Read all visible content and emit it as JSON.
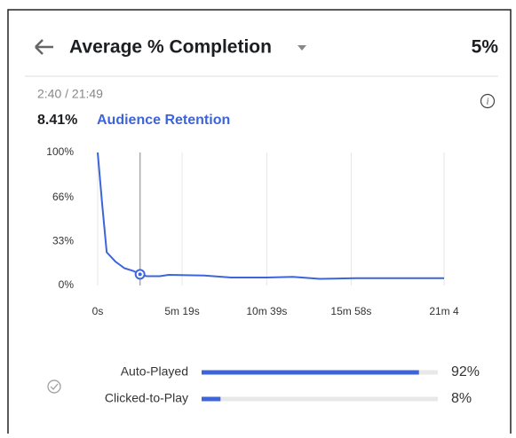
{
  "header": {
    "title": "Average % Completion",
    "value": "5%"
  },
  "summary": {
    "time": "2:40 / 21:49",
    "retention_value": "8.41%",
    "retention_label": "Audience Retention"
  },
  "chart_data": {
    "type": "line",
    "x": [
      0,
      17,
      34,
      67,
      101,
      134,
      160,
      185,
      235,
      268,
      403,
      503,
      638,
      738,
      839,
      973,
      1141,
      1309
    ],
    "series": [
      {
        "name": "Audience Retention",
        "color": "#3d64d8",
        "values": [
          100,
          61,
          25,
          18,
          13,
          11,
          8.41,
          7,
          7,
          8,
          7.5,
          6,
          6,
          6.5,
          5,
          5.5,
          5.5,
          5.5
        ]
      }
    ],
    "xlim": [
      0,
      1309
    ],
    "xticks": [
      {
        "value": 0,
        "label": "0s"
      },
      {
        "value": 319,
        "label": "5m 19s"
      },
      {
        "value": 639,
        "label": "10m 39s"
      },
      {
        "value": 958,
        "label": "15m 58s"
      },
      {
        "value": 1309,
        "label": "21m 4"
      }
    ],
    "ylim": [
      0,
      100
    ],
    "yticks": [
      {
        "value": 0,
        "label": "0%"
      },
      {
        "value": 33,
        "label": "33%"
      },
      {
        "value": 66,
        "label": "66%"
      },
      {
        "value": 100,
        "label": "100%"
      }
    ],
    "grid": true,
    "cursor": {
      "x": 160,
      "y": 8.41
    }
  },
  "breakdown": [
    {
      "name": "Auto-Played",
      "value": 92,
      "value_label": "92%"
    },
    {
      "name": "Clicked-to-Play",
      "value": 8,
      "value_label": "8%"
    }
  ]
}
